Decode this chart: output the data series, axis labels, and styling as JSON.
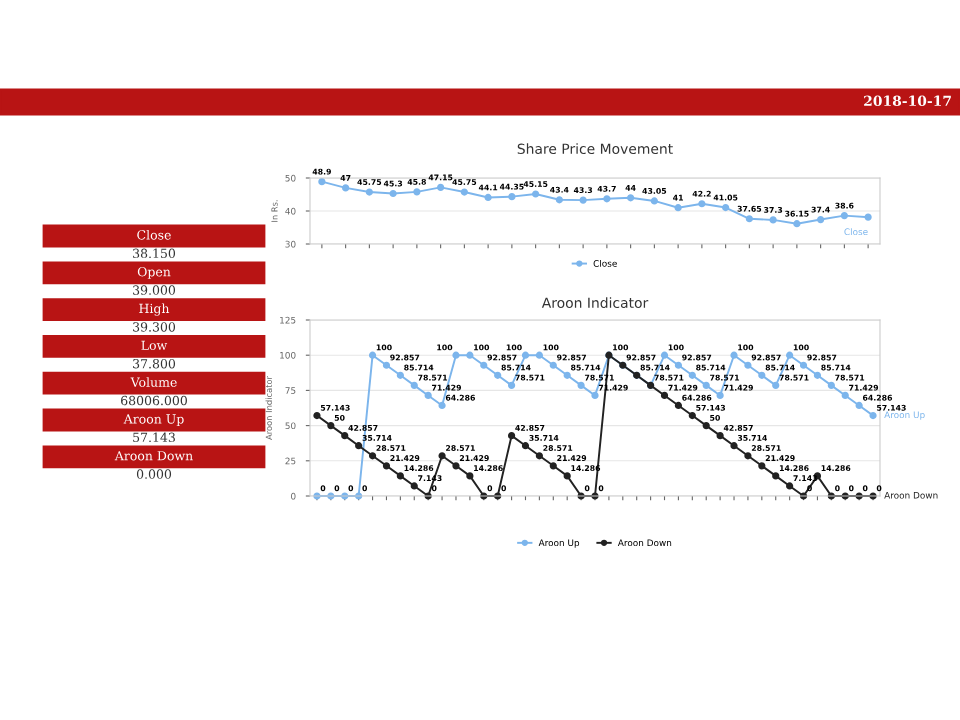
{
  "chart_data": [
    {
      "type": "other",
      "title": "2018-10-17",
      "annotations": [
        "Close",
        "38.150",
        "Open",
        "39.000",
        "High",
        "39.300",
        "Low",
        "37.800",
        "Volume",
        "68006.000",
        "Aroon Up",
        "57.143",
        "Aroon Down",
        "0.000"
      ]
    },
    {
      "type": "line",
      "title": "Share Price Movement",
      "ylabel": "In Rs.",
      "categories": [
        null,
        null,
        null,
        null,
        null,
        null,
        null,
        null,
        null,
        null,
        null,
        null,
        null,
        null,
        null,
        null,
        null,
        null,
        null,
        null,
        null,
        null,
        null,
        null
      ],
      "series": [
        {
          "name": "Close",
          "color": "#7cb5ec",
          "values": [
            48.9,
            47,
            45.75,
            45.3,
            45.8,
            47.15,
            45.75,
            44.1,
            44.35,
            45.15,
            43.4,
            43.3,
            43.7,
            44,
            43.05,
            41,
            42.2,
            41.05,
            37.65,
            37.3,
            36.15,
            37.4,
            38.6,
            38.15
          ],
          "value_labels": [
            "48.9",
            "47",
            "45.75",
            "45.3",
            "45.8",
            "47.15",
            "45.75",
            "44.1",
            "44.35",
            "45.15",
            "43.4",
            "43.3",
            "43.7",
            "44",
            "43.05",
            "41",
            "42.2",
            "41.05",
            "37.65",
            "37.3",
            "36.15",
            "37.4",
            "38.6",
            null
          ]
        }
      ],
      "ylim": [
        30,
        50
      ],
      "yticks": [
        30,
        40,
        50
      ],
      "grid": "y",
      "legend": "bottom",
      "marker": "circle",
      "tick_labels": "y"
    },
    {
      "type": "line",
      "title": "Aroon Indicator",
      "ylabel": "Aroon Indicator",
      "categories": [
        null,
        null,
        null,
        null,
        null,
        null,
        null,
        null,
        null,
        null,
        null,
        null,
        null,
        null,
        null,
        null,
        null,
        null,
        null,
        null,
        null,
        null,
        null,
        null,
        null,
        null,
        null,
        null,
        null,
        null,
        null,
        null,
        null,
        null,
        null,
        null,
        null,
        null,
        null,
        null,
        null
      ],
      "series": [
        {
          "name": "Aroon Up",
          "color": "#7cb5ec",
          "values": [
            0,
            0,
            0,
            0,
            100,
            92.857,
            85.714,
            78.571,
            71.429,
            64.286,
            100,
            100,
            92.857,
            85.714,
            78.571,
            100,
            100,
            92.857,
            85.714,
            78.571,
            71.429,
            100,
            92.857,
            85.714,
            78.571,
            100,
            92.857,
            85.714,
            78.571,
            71.429,
            100,
            92.857,
            85.714,
            78.571,
            100,
            92.857,
            85.714,
            78.571,
            71.429,
            64.286,
            57.143
          ]
        },
        {
          "name": "Aroon Down",
          "color": "#222222",
          "values": [
            57.143,
            50,
            42.857,
            35.714,
            28.571,
            21.429,
            14.286,
            7.143,
            0,
            28.571,
            21.429,
            14.286,
            0,
            0,
            42.857,
            35.714,
            28.571,
            21.429,
            14.286,
            0,
            0,
            100,
            92.857,
            85.714,
            78.571,
            71.429,
            64.286,
            57.143,
            50,
            42.857,
            35.714,
            28.571,
            21.429,
            14.286,
            7.143,
            0,
            14.286,
            0,
            0,
            0,
            0
          ],
          "value_labels": [
            "57.143",
            "50",
            "42.857",
            "35.714",
            "28.571",
            "21.429",
            "14.286",
            "7.143",
            "0",
            "28.571",
            "21.429",
            "14.286",
            "0",
            "0",
            "42.857",
            "35.714",
            "28.571",
            "21.429",
            "14.286",
            "0",
            "0",
            null,
            null,
            null,
            null,
            "71.429",
            "64.286",
            "57.143",
            "50",
            "42.857",
            "35.714",
            "28.571",
            "21.429",
            "14.286",
            "7.143",
            "0",
            "14.286",
            "0",
            "0",
            "0",
            "0"
          ]
        }
      ],
      "ylim": [
        0,
        125
      ],
      "yticks": [
        0,
        25,
        50,
        75,
        100,
        125
      ],
      "grid": "y",
      "legend": "bottom",
      "marker": "circle",
      "data_labels": true,
      "tick_labels": "y"
    }
  ]
}
